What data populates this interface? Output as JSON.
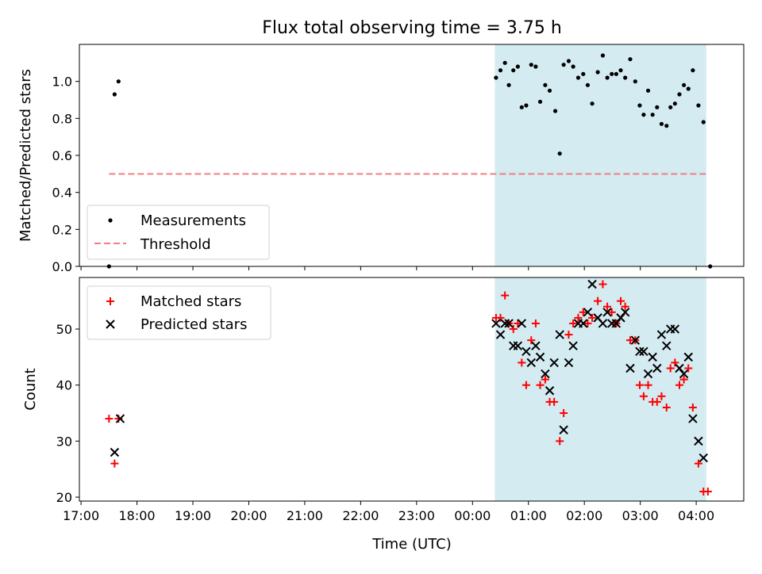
{
  "chart_data": {
    "type": "scatter",
    "title": "Flux total observing time = 3.75 h",
    "xlabel": "Time (UTC)",
    "x_ticks": [
      "17:00",
      "18:00",
      "19:00",
      "20:00",
      "21:00",
      "22:00",
      "23:00",
      "00:00",
      "01:00",
      "02:00",
      "03:00",
      "04:00"
    ],
    "x_range_hours": [
      16.97,
      28.85
    ],
    "shaded_region_hours": [
      24.4,
      28.18
    ],
    "colors": {
      "shade": "#d3ebf1",
      "matched": "#ff0000",
      "predicted": "#000000",
      "threshold": "#f08080",
      "measure": "#000000"
    },
    "panels": [
      {
        "id": "ratio",
        "ylabel": "Matched/Predicted stars",
        "ylim": [
          0,
          1.2
        ],
        "yticks": [
          "0.0",
          "0.2",
          "0.4",
          "0.6",
          "0.8",
          "1.0"
        ],
        "threshold": {
          "name": "Threshold",
          "value": 0.5,
          "x": [
            17.5,
            28.2
          ]
        },
        "series": [
          {
            "name": "Measurements",
            "marker": "dot",
            "points": [
              [
                17.5,
                0.0
              ],
              [
                17.6,
                0.93
              ],
              [
                17.67,
                1.0
              ],
              [
                24.42,
                1.02
              ],
              [
                24.5,
                1.06
              ],
              [
                24.58,
                1.1
              ],
              [
                24.65,
                0.98
              ],
              [
                24.73,
                1.06
              ],
              [
                24.81,
                1.08
              ],
              [
                24.88,
                0.86
              ],
              [
                24.96,
                0.87
              ],
              [
                25.05,
                1.09
              ],
              [
                25.13,
                1.08
              ],
              [
                25.21,
                0.89
              ],
              [
                25.3,
                0.98
              ],
              [
                25.38,
                0.95
              ],
              [
                25.48,
                0.84
              ],
              [
                25.56,
                0.61
              ],
              [
                25.63,
                1.09
              ],
              [
                25.72,
                1.11
              ],
              [
                25.8,
                1.08
              ],
              [
                25.89,
                1.02
              ],
              [
                25.98,
                1.04
              ],
              [
                26.06,
                0.98
              ],
              [
                26.14,
                0.88
              ],
              [
                26.24,
                1.05
              ],
              [
                26.33,
                1.14
              ],
              [
                26.41,
                1.02
              ],
              [
                26.49,
                1.04
              ],
              [
                26.57,
                1.04
              ],
              [
                26.65,
                1.06
              ],
              [
                26.73,
                1.02
              ],
              [
                26.82,
                1.12
              ],
              [
                26.91,
                1.0
              ],
              [
                26.99,
                0.87
              ],
              [
                27.06,
                0.82
              ],
              [
                27.14,
                0.95
              ],
              [
                27.22,
                0.82
              ],
              [
                27.3,
                0.86
              ],
              [
                27.38,
                0.77
              ],
              [
                27.47,
                0.76
              ],
              [
                27.54,
                0.86
              ],
              [
                27.62,
                0.88
              ],
              [
                27.7,
                0.93
              ],
              [
                27.78,
                0.98
              ],
              [
                27.86,
                0.96
              ],
              [
                27.94,
                1.06
              ],
              [
                28.04,
                0.87
              ],
              [
                28.13,
                0.78
              ],
              [
                28.25,
                0.0
              ]
            ]
          }
        ],
        "legend": {
          "location": "lower left",
          "entries": [
            "Measurements",
            "Threshold"
          ]
        }
      },
      {
        "id": "count",
        "ylabel": "Count",
        "ylim": [
          19.3,
          59.2
        ],
        "yticks": [
          "20",
          "30",
          "40",
          "50"
        ],
        "series": [
          {
            "name": "Matched stars",
            "marker": "plus",
            "points": [
              [
                17.5,
                34
              ],
              [
                17.6,
                26
              ],
              [
                17.67,
                34
              ],
              [
                24.42,
                52
              ],
              [
                24.5,
                52
              ],
              [
                24.58,
                56
              ],
              [
                24.65,
                51
              ],
              [
                24.73,
                50
              ],
              [
                24.81,
                51
              ],
              [
                24.88,
                44
              ],
              [
                24.96,
                40
              ],
              [
                25.05,
                48
              ],
              [
                25.13,
                51
              ],
              [
                25.21,
                40
              ],
              [
                25.3,
                41
              ],
              [
                25.38,
                37
              ],
              [
                25.46,
                37
              ],
              [
                25.56,
                30
              ],
              [
                25.63,
                35
              ],
              [
                25.72,
                49
              ],
              [
                25.8,
                51
              ],
              [
                25.89,
                52
              ],
              [
                25.98,
                53
              ],
              [
                26.06,
                51
              ],
              [
                26.14,
                52
              ],
              [
                26.24,
                55
              ],
              [
                26.33,
                58
              ],
              [
                26.41,
                54
              ],
              [
                26.49,
                53
              ],
              [
                26.57,
                51
              ],
              [
                26.65,
                55
              ],
              [
                26.73,
                54
              ],
              [
                26.82,
                48
              ],
              [
                26.91,
                48
              ],
              [
                26.99,
                40
              ],
              [
                27.06,
                38
              ],
              [
                27.14,
                40
              ],
              [
                27.22,
                37
              ],
              [
                27.3,
                37
              ],
              [
                27.38,
                38
              ],
              [
                27.47,
                36
              ],
              [
                27.54,
                43
              ],
              [
                27.62,
                44
              ],
              [
                27.7,
                40
              ],
              [
                27.78,
                41
              ],
              [
                27.86,
                43
              ],
              [
                27.94,
                36
              ],
              [
                28.04,
                26
              ],
              [
                28.13,
                21
              ],
              [
                28.21,
                21
              ]
            ]
          },
          {
            "name": "Predicted stars",
            "marker": "x",
            "points": [
              [
                17.6,
                28
              ],
              [
                17.7,
                34
              ],
              [
                24.42,
                51
              ],
              [
                24.5,
                49
              ],
              [
                24.58,
                51
              ],
              [
                24.65,
                51
              ],
              [
                24.73,
                47
              ],
              [
                24.81,
                47
              ],
              [
                24.88,
                51
              ],
              [
                24.96,
                46
              ],
              [
                25.05,
                44
              ],
              [
                25.13,
                47
              ],
              [
                25.21,
                45
              ],
              [
                25.3,
                42
              ],
              [
                25.38,
                39
              ],
              [
                25.46,
                44
              ],
              [
                25.56,
                49
              ],
              [
                25.63,
                32
              ],
              [
                25.72,
                44
              ],
              [
                25.8,
                47
              ],
              [
                25.89,
                51
              ],
              [
                25.98,
                51
              ],
              [
                26.06,
                53
              ],
              [
                26.14,
                58
              ],
              [
                26.24,
                52
              ],
              [
                26.33,
                51
              ],
              [
                26.41,
                53
              ],
              [
                26.49,
                51
              ],
              [
                26.57,
                51
              ],
              [
                26.65,
                52
              ],
              [
                26.73,
                53
              ],
              [
                26.82,
                43
              ],
              [
                26.91,
                48
              ],
              [
                26.99,
                46
              ],
              [
                27.06,
                46
              ],
              [
                27.14,
                42
              ],
              [
                27.22,
                45
              ],
              [
                27.3,
                43
              ],
              [
                27.38,
                49
              ],
              [
                27.47,
                47
              ],
              [
                27.54,
                50
              ],
              [
                27.62,
                50
              ],
              [
                27.7,
                43
              ],
              [
                27.78,
                42
              ],
              [
                27.86,
                45
              ],
              [
                27.94,
                34
              ],
              [
                28.04,
                30
              ],
              [
                28.13,
                27
              ]
            ]
          }
        ],
        "legend": {
          "location": "upper left",
          "entries": [
            "Matched stars",
            "Predicted stars"
          ]
        }
      }
    ]
  }
}
